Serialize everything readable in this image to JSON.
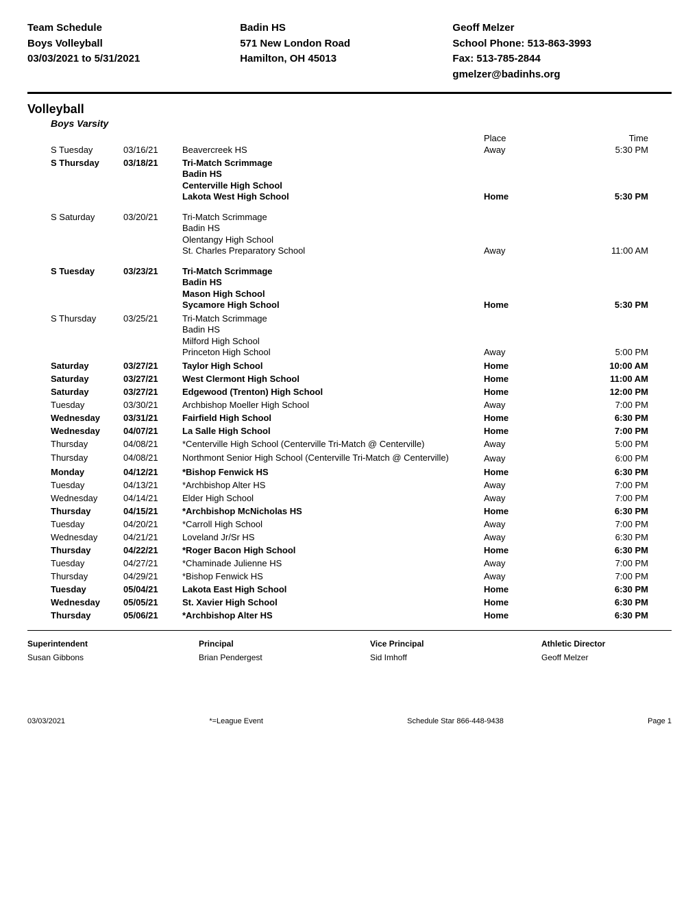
{
  "header": {
    "left": {
      "line1": "Team Schedule",
      "line2": "Boys Volleyball",
      "line3": "03/03/2021 to 5/31/2021"
    },
    "mid": {
      "line1": "Badin HS",
      "line2": "571 New London Road",
      "line3": "Hamilton, OH 45013"
    },
    "right": {
      "line1": "Geoff Melzer",
      "line2": "School Phone: 513-863-3993",
      "line3": "Fax: 513-785-2844",
      "line4": "gmelzer@badinhs.org"
    }
  },
  "section_title": "Volleyball",
  "subsection_title": "Boys Varsity",
  "col_headers": {
    "place": "Place",
    "time": "Time"
  },
  "rows": [
    {
      "day": "S Tuesday",
      "date": "03/16/21",
      "opponent": "Beavercreek HS",
      "place": "Away",
      "time": "5:30 PM",
      "bold": false,
      "multiline": false
    },
    {
      "day": "S Thursday",
      "date": "03/18/21",
      "opponent": "Tri-Match Scrimmage\nBadin HS\nCenterville High School\nLakota West High School",
      "place": "Home",
      "time": "5:30 PM",
      "bold": true,
      "multiline": true
    },
    {
      "spacer": true
    },
    {
      "day": "S Saturday",
      "date": "03/20/21",
      "opponent": "Tri-Match Scrimmage\nBadin HS\nOlentangy High School\nSt. Charles Preparatory School",
      "place": "Away",
      "time": "11:00 AM",
      "bold": false,
      "multiline": true
    },
    {
      "spacer": true
    },
    {
      "day": "S Tuesday",
      "date": "03/23/21",
      "opponent": "Tri-Match Scrimmage\nBadin HS\nMason High School\nSycamore High School",
      "place": "Home",
      "time": "5:30 PM",
      "bold": true,
      "multiline": true
    },
    {
      "day": "S Thursday",
      "date": "03/25/21",
      "opponent": "Tri-Match Scrimmage\nBadin HS\nMilford High School\nPrinceton High School",
      "place": "Away",
      "time": "5:00 PM",
      "bold": false,
      "multiline": true
    },
    {
      "day": "Saturday",
      "date": "03/27/21",
      "opponent": "Taylor High School",
      "place": "Home",
      "time": "10:00 AM",
      "bold": true,
      "multiline": false
    },
    {
      "day": "Saturday",
      "date": "03/27/21",
      "opponent": "West Clermont High School",
      "place": "Home",
      "time": "11:00 AM",
      "bold": true,
      "multiline": false
    },
    {
      "day": "Saturday",
      "date": "03/27/21",
      "opponent": "Edgewood (Trenton) High School",
      "place": "Home",
      "time": "12:00 PM",
      "bold": true,
      "multiline": false
    },
    {
      "day": "Tuesday",
      "date": "03/30/21",
      "opponent": "Archbishop Moeller High School",
      "place": "Away",
      "time": "7:00 PM",
      "bold": false,
      "multiline": false
    },
    {
      "day": "Wednesday",
      "date": "03/31/21",
      "opponent": "Fairfield High School",
      "place": "Home",
      "time": "6:30 PM",
      "bold": true,
      "multiline": false
    },
    {
      "day": "Wednesday",
      "date": "04/07/21",
      "opponent": "La Salle High School",
      "place": "Home",
      "time": "7:00 PM",
      "bold": true,
      "multiline": false
    },
    {
      "day": "Thursday",
      "date": "04/08/21",
      "opponent": "*Centerville High School (Centerville Tri-Match @ Centerville)",
      "place": "Away",
      "time": "5:00 PM",
      "bold": false,
      "multiline": true
    },
    {
      "day": "Thursday",
      "date": "04/08/21",
      "opponent": "Northmont Senior High School (Centerville Tri-Match @ Centerville)",
      "place": "Away",
      "time": "6:00 PM",
      "bold": false,
      "multiline": true
    },
    {
      "day": "Monday",
      "date": "04/12/21",
      "opponent": "*Bishop Fenwick HS",
      "place": "Home",
      "time": "6:30 PM",
      "bold": true,
      "multiline": false
    },
    {
      "day": "Tuesday",
      "date": "04/13/21",
      "opponent": "*Archbishop Alter HS",
      "place": "Away",
      "time": "7:00 PM",
      "bold": false,
      "multiline": false
    },
    {
      "day": "Wednesday",
      "date": "04/14/21",
      "opponent": "Elder High School",
      "place": "Away",
      "time": "7:00 PM",
      "bold": false,
      "multiline": false
    },
    {
      "day": "Thursday",
      "date": "04/15/21",
      "opponent": "*Archbishop McNicholas HS",
      "place": "Home",
      "time": "6:30 PM",
      "bold": true,
      "multiline": false
    },
    {
      "day": "Tuesday",
      "date": "04/20/21",
      "opponent": "*Carroll High School",
      "place": "Away",
      "time": "7:00 PM",
      "bold": false,
      "multiline": false
    },
    {
      "day": "Wednesday",
      "date": "04/21/21",
      "opponent": "Loveland Jr/Sr HS",
      "place": "Away",
      "time": "6:30 PM",
      "bold": false,
      "multiline": false
    },
    {
      "day": "Thursday",
      "date": "04/22/21",
      "opponent": "*Roger Bacon High School",
      "place": "Home",
      "time": "6:30 PM",
      "bold": true,
      "multiline": false
    },
    {
      "day": "Tuesday",
      "date": "04/27/21",
      "opponent": "*Chaminade Julienne HS",
      "place": "Away",
      "time": "7:00 PM",
      "bold": false,
      "multiline": false
    },
    {
      "day": "Thursday",
      "date": "04/29/21",
      "opponent": "*Bishop Fenwick HS",
      "place": "Away",
      "time": "7:00 PM",
      "bold": false,
      "multiline": false
    },
    {
      "day": "Tuesday",
      "date": "05/04/21",
      "opponent": "Lakota East High School",
      "place": "Home",
      "time": "6:30 PM",
      "bold": true,
      "multiline": false
    },
    {
      "day": "Wednesday",
      "date": "05/05/21",
      "opponent": "St. Xavier High School",
      "place": "Home",
      "time": "6:30 PM",
      "bold": true,
      "multiline": false
    },
    {
      "day": "Thursday",
      "date": "05/06/21",
      "opponent": "*Archbishop Alter HS",
      "place": "Home",
      "time": "6:30 PM",
      "bold": true,
      "multiline": false
    }
  ],
  "footer_roles": [
    {
      "label": "Superintendent",
      "name": "Susan Gibbons"
    },
    {
      "label": "Principal",
      "name": "Brian Pendergest"
    },
    {
      "label": "Vice Principal",
      "name": "Sid Imhoff"
    },
    {
      "label": "Athletic Director",
      "name": "Geoff Melzer"
    }
  ],
  "page_footer": {
    "left": "03/03/2021",
    "mid": "*=League Event",
    "right": "Schedule Star 866-448-9438",
    "page": "Page 1"
  },
  "style": {
    "background_color": "#ffffff",
    "text_color": "#000000",
    "header_fontsize": 15,
    "body_fontsize": 13,
    "section_fontsize": 18,
    "footer_fontsize": 12,
    "pagefooter_fontsize": 11
  }
}
